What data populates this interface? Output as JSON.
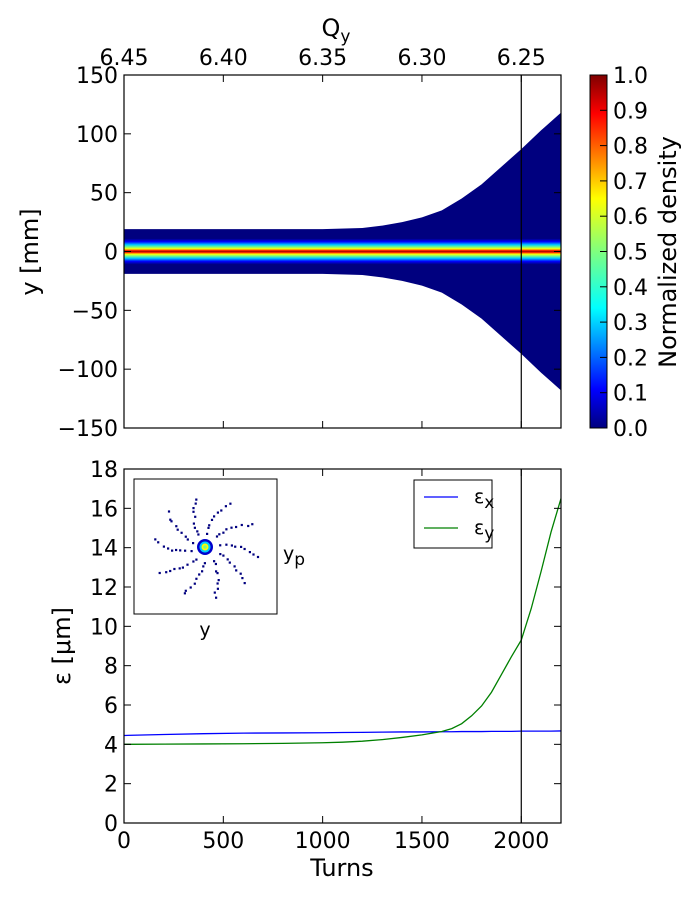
{
  "chart_data": [
    {
      "type": "heatmap",
      "xlabel": "",
      "ylabel": "y [mm]",
      "top_xlabel": "Q",
      "top_xlabel_sub": "y",
      "xlim": [
        0,
        2200
      ],
      "ylim": [
        -150,
        150
      ],
      "yticks": [
        150,
        100,
        50,
        0,
        -50,
        -100,
        -150
      ],
      "ytick_labels": [
        "150",
        "100",
        "50",
        "0",
        "−50",
        "−100",
        "−150"
      ],
      "top_ticks": [
        {
          "turn": 0,
          "label": "6.45"
        },
        {
          "turn": 500,
          "label": "6.40"
        },
        {
          "turn": 1000,
          "label": "6.35"
        },
        {
          "turn": 1500,
          "label": "6.30"
        },
        {
          "turn": 2000,
          "label": "6.25"
        }
      ],
      "envelope": {
        "turns": [
          0,
          200,
          400,
          600,
          800,
          1000,
          1200,
          1300,
          1400,
          1500,
          1600,
          1700,
          1800,
          1900,
          2000,
          2100,
          2200
        ],
        "half_width_mm": [
          19,
          19,
          19,
          19,
          19,
          19,
          20,
          22,
          25,
          29,
          35,
          45,
          57,
          72,
          87,
          103,
          118
        ]
      },
      "core_half_width_mm": 11,
      "vline_turn": 2000,
      "colorbar": {
        "label": "Normalized density",
        "min": 0.0,
        "max": 1.0,
        "ticks": [
          "0.0",
          "0.1",
          "0.2",
          "0.3",
          "0.4",
          "0.5",
          "0.6",
          "0.7",
          "0.8",
          "0.9",
          "1.0"
        ],
        "colormap": "jet"
      }
    },
    {
      "type": "line",
      "xlabel": "Turns",
      "ylabel": "ε [μm]",
      "xlim": [
        0,
        2200
      ],
      "ylim": [
        0,
        18
      ],
      "xticks": [
        0,
        500,
        1000,
        1500,
        2000
      ],
      "xtick_labels": [
        "0",
        "500",
        "1000",
        "1500",
        "2000"
      ],
      "yticks": [
        0,
        2,
        4,
        6,
        8,
        10,
        12,
        14,
        16,
        18
      ],
      "ytick_labels": [
        "0",
        "2",
        "4",
        "6",
        "8",
        "10",
        "12",
        "14",
        "16",
        "18"
      ],
      "x": [
        0,
        200,
        400,
        600,
        800,
        1000,
        1100,
        1200,
        1300,
        1400,
        1500,
        1600,
        1650,
        1700,
        1750,
        1800,
        1850,
        1900,
        1950,
        2000,
        2050,
        2100,
        2150,
        2200
      ],
      "series": [
        {
          "name": "ε",
          "sub": "x",
          "color": "#0000ff",
          "values": [
            4.45,
            4.5,
            4.54,
            4.57,
            4.58,
            4.59,
            4.6,
            4.61,
            4.62,
            4.63,
            4.63,
            4.64,
            4.64,
            4.65,
            4.65,
            4.65,
            4.66,
            4.66,
            4.66,
            4.67,
            4.67,
            4.67,
            4.67,
            4.68
          ]
        },
        {
          "name": "ε",
          "sub": "y",
          "color": "#008000",
          "values": [
            4.0,
            4.01,
            4.02,
            4.03,
            4.05,
            4.08,
            4.11,
            4.16,
            4.24,
            4.35,
            4.48,
            4.65,
            4.8,
            5.05,
            5.45,
            5.95,
            6.65,
            7.55,
            8.45,
            9.3,
            10.9,
            12.8,
            14.8,
            16.5
          ]
        }
      ],
      "vline_turn": 2000,
      "legend_position": "top-right",
      "inset": {
        "xlabel": "y",
        "ylabel": "y",
        "ylabel_sub": "p",
        "arms": 10
      }
    }
  ]
}
